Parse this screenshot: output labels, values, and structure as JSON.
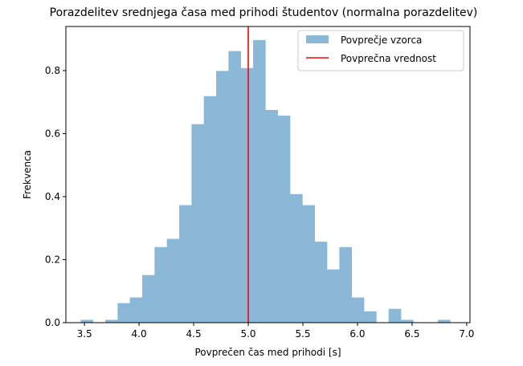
{
  "chart_data": {
    "type": "bar",
    "title": "Porazdelitev srednjega časa med prihodi študentov (normalna porazdelitev)",
    "xlabel": "Povprečen čas med prihodi [s]",
    "ylabel": "Frekvenca",
    "xlim": [
      3.33,
      7.03
    ],
    "ylim": [
      0,
      0.94
    ],
    "xticks": [
      3.5,
      4.0,
      4.5,
      5.0,
      5.5,
      6.0,
      6.5,
      7.0
    ],
    "xtick_labels": [
      "3.5",
      "4.0",
      "4.5",
      "5.0",
      "5.5",
      "6.0",
      "6.5",
      "7.0"
    ],
    "yticks": [
      0.0,
      0.2,
      0.4,
      0.6,
      0.8
    ],
    "ytick_labels": [
      "0.0",
      "0.2",
      "0.4",
      "0.6",
      "0.8"
    ],
    "bin_start": 3.465,
    "bin_width": 0.1128,
    "values": [
      0.009,
      0.0,
      0.009,
      0.062,
      0.08,
      0.151,
      0.24,
      0.266,
      0.373,
      0.63,
      0.719,
      0.799,
      0.862,
      0.808,
      0.897,
      0.675,
      0.657,
      0.408,
      0.373,
      0.257,
      0.169,
      0.24,
      0.08,
      0.036,
      0.0,
      0.044,
      0.009,
      0.0,
      0.0,
      0.009
    ],
    "mean_line": {
      "x": 5.0,
      "name": "Povprečna vrednost",
      "color": "#ff0000"
    },
    "series": [
      {
        "name": "Povprečje vzorca",
        "color": "#8cb8d8"
      }
    ],
    "legend_position": "upper right",
    "grid": false
  }
}
